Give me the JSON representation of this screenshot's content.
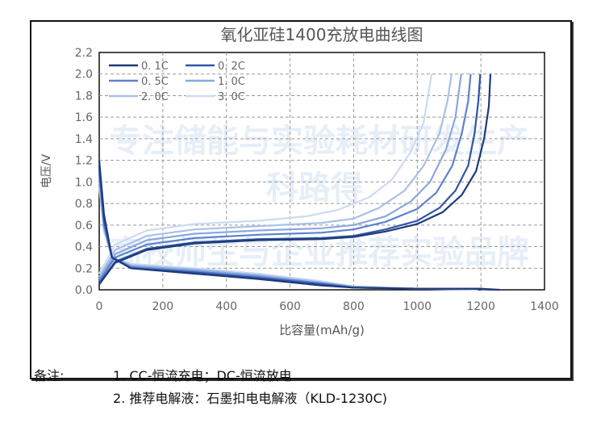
{
  "watermark": {
    "line1": "专注储能与实验耗材研发生产",
    "line2": "高校师生与企业推荐实验品牌",
    "brand": "科路得"
  },
  "notes": {
    "label": "备注:",
    "item1": "1. CC-恒流充电；DC-恒流放电",
    "item2": "2. 推荐电解液：石墨扣电电解液（KLD-1230C)"
  },
  "chart_data": {
    "type": "line",
    "title": "氧化亚硅1400充放电曲线图",
    "xlabel": "比容量(mAh/g)",
    "ylabel": "电压/V",
    "xlim": [
      0,
      1400
    ],
    "ylim": [
      0,
      2.2
    ],
    "xticks": [
      0,
      200,
      400,
      600,
      800,
      1000,
      1200,
      1400
    ],
    "yticks": [
      "0.0",
      "0.2",
      "0.4",
      "0.6",
      "0.8",
      "1.0",
      "1.2",
      "1.4",
      "1.6",
      "1.8",
      "2.0",
      "2.2"
    ],
    "grid": true,
    "legend_position": "top-left",
    "series": [
      {
        "name": "0. 1C",
        "color": "#1f3a7a",
        "charge": [
          [
            0,
            0.05
          ],
          [
            50,
            0.25
          ],
          [
            150,
            0.37
          ],
          [
            300,
            0.43
          ],
          [
            500,
            0.46
          ],
          [
            700,
            0.47
          ],
          [
            800,
            0.49
          ],
          [
            900,
            0.54
          ],
          [
            1000,
            0.61
          ],
          [
            1080,
            0.72
          ],
          [
            1140,
            0.88
          ],
          [
            1185,
            1.1
          ],
          [
            1210,
            1.4
          ],
          [
            1225,
            1.7
          ],
          [
            1230,
            2.0
          ]
        ],
        "discharge": [
          [
            0,
            1.2
          ],
          [
            15,
            0.7
          ],
          [
            40,
            0.3
          ],
          [
            100,
            0.2
          ],
          [
            300,
            0.15
          ],
          [
            500,
            0.1
          ],
          [
            700,
            0.04
          ],
          [
            800,
            0.02
          ],
          [
            1000,
            0.01
          ],
          [
            1200,
            0.01
          ],
          [
            1260,
            0
          ]
        ]
      },
      {
        "name": "0. 2C",
        "color": "#2e55a8",
        "charge": [
          [
            0,
            0.06
          ],
          [
            50,
            0.26
          ],
          [
            150,
            0.38
          ],
          [
            300,
            0.44
          ],
          [
            500,
            0.47
          ],
          [
            700,
            0.48
          ],
          [
            800,
            0.5
          ],
          [
            900,
            0.56
          ],
          [
            1000,
            0.64
          ],
          [
            1070,
            0.76
          ],
          [
            1120,
            0.92
          ],
          [
            1160,
            1.15
          ],
          [
            1180,
            1.45
          ],
          [
            1192,
            1.75
          ],
          [
            1198,
            2.0
          ]
        ],
        "discharge": [
          [
            0,
            1.15
          ],
          [
            15,
            0.65
          ],
          [
            40,
            0.3
          ],
          [
            100,
            0.2
          ],
          [
            300,
            0.16
          ],
          [
            500,
            0.11
          ],
          [
            700,
            0.05
          ],
          [
            800,
            0.02
          ],
          [
            1000,
            0.01
          ],
          [
            1200,
            0.01
          ],
          [
            1240,
            0
          ]
        ]
      },
      {
        "name": "0. 5C",
        "color": "#5d82cc",
        "charge": [
          [
            0,
            0.08
          ],
          [
            50,
            0.3
          ],
          [
            150,
            0.42
          ],
          [
            300,
            0.48
          ],
          [
            500,
            0.51
          ],
          [
            700,
            0.53
          ],
          [
            800,
            0.56
          ],
          [
            900,
            0.63
          ],
          [
            1000,
            0.75
          ],
          [
            1060,
            0.9
          ],
          [
            1110,
            1.15
          ],
          [
            1140,
            1.45
          ],
          [
            1160,
            1.75
          ],
          [
            1168,
            2.0
          ]
        ],
        "discharge": [
          [
            0,
            1.1
          ],
          [
            15,
            0.6
          ],
          [
            40,
            0.3
          ],
          [
            100,
            0.21
          ],
          [
            300,
            0.17
          ],
          [
            500,
            0.12
          ],
          [
            700,
            0.06
          ],
          [
            800,
            0.02
          ],
          [
            1000,
            0.01
          ],
          [
            1200,
            0.01
          ],
          [
            1230,
            0
          ]
        ]
      },
      {
        "name": "1. 0C",
        "color": "#8aa8dd",
        "charge": [
          [
            0,
            0.1
          ],
          [
            50,
            0.33
          ],
          [
            150,
            0.46
          ],
          [
            300,
            0.52
          ],
          [
            500,
            0.55
          ],
          [
            700,
            0.57
          ],
          [
            800,
            0.6
          ],
          [
            900,
            0.68
          ],
          [
            980,
            0.82
          ],
          [
            1040,
            1.0
          ],
          [
            1090,
            1.3
          ],
          [
            1120,
            1.6
          ],
          [
            1138,
            2.0
          ]
        ],
        "discharge": [
          [
            0,
            1.05
          ],
          [
            15,
            0.6
          ],
          [
            40,
            0.3
          ],
          [
            100,
            0.22
          ],
          [
            300,
            0.18
          ],
          [
            500,
            0.13
          ],
          [
            700,
            0.06
          ],
          [
            800,
            0.03
          ],
          [
            1000,
            0.01
          ],
          [
            1200,
            0.01
          ],
          [
            1220,
            0
          ]
        ]
      },
      {
        "name": "2. 0C",
        "color": "#a9c0e8",
        "charge": [
          [
            0,
            0.12
          ],
          [
            50,
            0.37
          ],
          [
            150,
            0.5
          ],
          [
            300,
            0.56
          ],
          [
            500,
            0.59
          ],
          [
            700,
            0.62
          ],
          [
            800,
            0.66
          ],
          [
            880,
            0.76
          ],
          [
            960,
            0.92
          ],
          [
            1020,
            1.15
          ],
          [
            1070,
            1.45
          ],
          [
            1095,
            1.75
          ],
          [
            1108,
            2.0
          ]
        ],
        "discharge": [
          [
            0,
            1.0
          ],
          [
            15,
            0.55
          ],
          [
            40,
            0.3
          ],
          [
            100,
            0.23
          ],
          [
            300,
            0.19
          ],
          [
            500,
            0.14
          ],
          [
            700,
            0.07
          ],
          [
            800,
            0.03
          ],
          [
            1000,
            0.01
          ],
          [
            1200,
            0.01
          ],
          [
            1210,
            0
          ]
        ]
      },
      {
        "name": "3. 0C",
        "color": "#cddbf2",
        "charge": [
          [
            0,
            0.15
          ],
          [
            50,
            0.42
          ],
          [
            150,
            0.55
          ],
          [
            300,
            0.61
          ],
          [
            500,
            0.64
          ],
          [
            650,
            0.68
          ],
          [
            750,
            0.74
          ],
          [
            850,
            0.86
          ],
          [
            920,
            1.02
          ],
          [
            980,
            1.28
          ],
          [
            1020,
            1.55
          ],
          [
            1045,
            2.0
          ]
        ],
        "discharge": [
          [
            0,
            0.95
          ],
          [
            15,
            0.55
          ],
          [
            40,
            0.3
          ],
          [
            100,
            0.24
          ],
          [
            300,
            0.2
          ],
          [
            500,
            0.15
          ],
          [
            700,
            0.08
          ],
          [
            800,
            0.03
          ],
          [
            1000,
            0.01
          ],
          [
            1190,
            0
          ]
        ]
      }
    ]
  }
}
